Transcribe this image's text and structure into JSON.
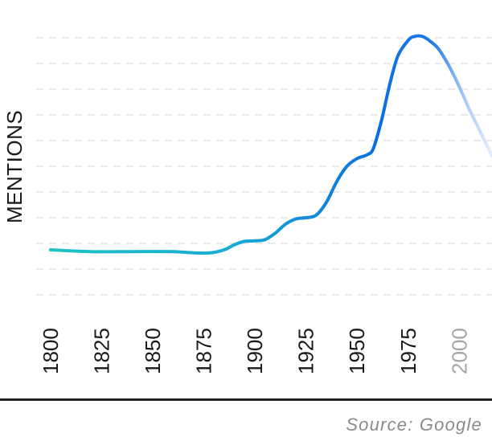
{
  "chart_data": {
    "type": "line",
    "ylabel": "MENTIONS",
    "xlabel": "",
    "x_ticks": [
      "1800",
      "1825",
      "1850",
      "1875",
      "1900",
      "1925",
      "1950",
      "1975",
      "2000"
    ],
    "x_range": [
      1793,
      2016
    ],
    "y_range": [
      0,
      10
    ],
    "grid": true,
    "gridline_count": 10,
    "series": [
      {
        "x": [
          1800,
          1820,
          1840,
          1860,
          1870,
          1878,
          1885,
          1890,
          1895,
          1900,
          1905,
          1910,
          1915,
          1920,
          1925,
          1930,
          1935,
          1940,
          1945,
          1950,
          1955,
          1958,
          1962,
          1966,
          1970,
          1975,
          1978,
          1982,
          1986,
          1990,
          1995,
          2000,
          2005,
          2010,
          2016
        ],
        "y": [
          1.75,
          1.68,
          1.68,
          1.68,
          1.63,
          1.63,
          1.75,
          1.95,
          2.08,
          2.1,
          2.15,
          2.4,
          2.75,
          2.95,
          3.0,
          3.1,
          3.6,
          4.4,
          5.0,
          5.3,
          5.45,
          5.7,
          6.8,
          8.2,
          9.3,
          9.9,
          10.05,
          10.05,
          9.85,
          9.55,
          8.9,
          8.1,
          7.2,
          6.4,
          5.4
        ],
        "colors": {
          "start": "#1ec6c2",
          "end": "#0a5fd8",
          "fade": "#d6e6fb"
        }
      }
    ],
    "source": "Source: Google"
  }
}
